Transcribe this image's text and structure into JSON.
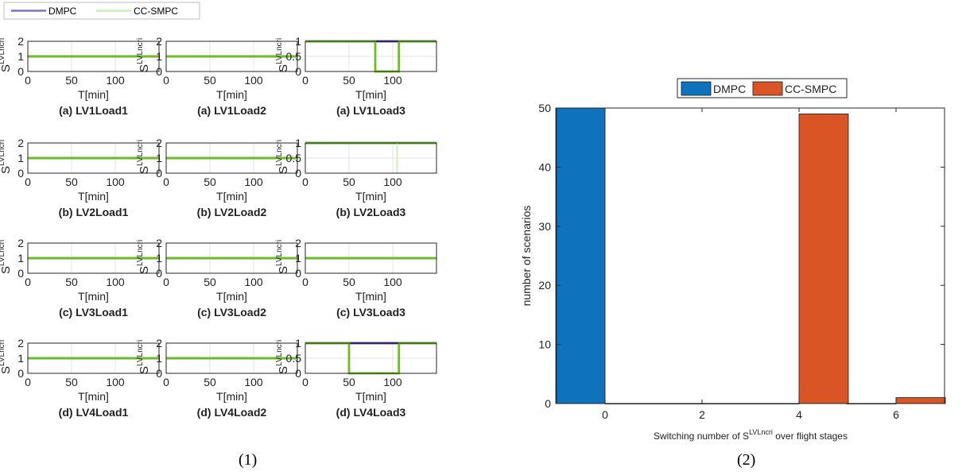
{
  "legend_left": [
    "DMPC",
    "CC-SMPC"
  ],
  "legend_right": [
    "DMPC",
    "CC-SMPC"
  ],
  "colors": {
    "dmpc_left": "#7b71c9",
    "ccsmpc_left": "#c8eeb0",
    "dmpc_dark": "#3a2a9c",
    "ccsmpc_line": "#6cbf1f",
    "dmpc_bar": "#0f72bd",
    "ccsmpc_bar": "#d95526"
  },
  "figure_captions": [
    "(1)",
    "(2)"
  ],
  "chart_data": [
    {
      "type": "line",
      "subplot_grid": "4x3",
      "xlabel": "T[min]",
      "ylabel_base": "S",
      "ylabel_sup": "LVLncri",
      "subplots": [
        {
          "title": "(a) LV1Load1",
          "xlim": [
            0,
            150
          ],
          "xticks": [
            "0",
            "50",
            "100"
          ],
          "ylim": [
            0,
            2
          ],
          "yticks": [
            "0",
            "1",
            "2"
          ],
          "series": [
            {
              "name": "DMPC",
              "x": [
                0,
                150
              ],
              "y": [
                1,
                1
              ]
            },
            {
              "name": "CC-SMPC",
              "x": [
                0,
                150
              ],
              "y": [
                1,
                1
              ]
            }
          ]
        },
        {
          "title": "(a) LV1Load2",
          "xlim": [
            0,
            150
          ],
          "xticks": [
            "0",
            "50",
            "100"
          ],
          "ylim": [
            0,
            2
          ],
          "yticks": [
            "0",
            "1",
            "2"
          ],
          "series": [
            {
              "name": "DMPC",
              "x": [
                0,
                150
              ],
              "y": [
                1,
                1
              ]
            },
            {
              "name": "CC-SMPC",
              "x": [
                0,
                150
              ],
              "y": [
                1,
                1
              ]
            }
          ]
        },
        {
          "title": "(a) LV1Load3",
          "xlim": [
            0,
            150
          ],
          "xticks": [
            "0",
            "50",
            "100"
          ],
          "ylim": [
            0,
            1
          ],
          "yticks": [
            "0",
            "0.5",
            "1"
          ],
          "series": [
            {
              "name": "DMPC",
              "x": [
                0,
                150
              ],
              "y": [
                1,
                1
              ]
            },
            {
              "name": "CC-SMPC",
              "x": [
                0,
                80,
                80,
                107,
                107,
                150
              ],
              "y": [
                1,
                1,
                0,
                0,
                1,
                1
              ]
            }
          ]
        },
        {
          "title": "(b) LV2Load1",
          "xlim": [
            0,
            150
          ],
          "xticks": [
            "0",
            "50",
            "100"
          ],
          "ylim": [
            0,
            2
          ],
          "yticks": [
            "0",
            "1",
            "2"
          ],
          "series": [
            {
              "name": "DMPC",
              "x": [
                0,
                150
              ],
              "y": [
                1,
                1
              ]
            },
            {
              "name": "CC-SMPC",
              "x": [
                0,
                150
              ],
              "y": [
                1,
                1
              ]
            }
          ]
        },
        {
          "title": "(b) LV2Load2",
          "xlim": [
            0,
            150
          ],
          "xticks": [
            "0",
            "50",
            "100"
          ],
          "ylim": [
            0,
            2
          ],
          "yticks": [
            "0",
            "1",
            "2"
          ],
          "series": [
            {
              "name": "DMPC",
              "x": [
                0,
                150
              ],
              "y": [
                1,
                1
              ]
            },
            {
              "name": "CC-SMPC",
              "x": [
                0,
                150
              ],
              "y": [
                1,
                1
              ]
            }
          ]
        },
        {
          "title": "(b) LV2Load3",
          "xlim": [
            0,
            150
          ],
          "xticks": [
            "0",
            "50",
            "100"
          ],
          "ylim": [
            0,
            1
          ],
          "yticks": [
            "0",
            "0.5",
            "1"
          ],
          "series": [
            {
              "name": "DMPC",
              "x": [
                0,
                150
              ],
              "y": [
                1,
                1
              ]
            },
            {
              "name": "CC-SMPC",
              "x": [
                0,
                150
              ],
              "y": [
                1,
                1
              ]
            }
          ]
        },
        {
          "title": "(c) LV3Load1",
          "xlim": [
            0,
            150
          ],
          "xticks": [
            "0",
            "50",
            "100"
          ],
          "ylim": [
            0,
            2
          ],
          "yticks": [
            "0",
            "1",
            "2"
          ],
          "series": [
            {
              "name": "DMPC",
              "x": [
                0,
                150
              ],
              "y": [
                1,
                1
              ]
            },
            {
              "name": "CC-SMPC",
              "x": [
                0,
                150
              ],
              "y": [
                1,
                1
              ]
            }
          ]
        },
        {
          "title": "(c) LV3Load2",
          "xlim": [
            0,
            150
          ],
          "xticks": [
            "0",
            "50",
            "100"
          ],
          "ylim": [
            0,
            2
          ],
          "yticks": [
            "0",
            "1",
            "2"
          ],
          "series": [
            {
              "name": "DMPC",
              "x": [
                0,
                150
              ],
              "y": [
                1,
                1
              ]
            },
            {
              "name": "CC-SMPC",
              "x": [
                0,
                150
              ],
              "y": [
                1,
                1
              ]
            }
          ]
        },
        {
          "title": "(c) LV3Load3",
          "xlim": [
            0,
            150
          ],
          "xticks": [
            "0",
            "50",
            "100"
          ],
          "ylim": [
            0,
            2
          ],
          "yticks": [
            "0",
            "1",
            "2"
          ],
          "series": [
            {
              "name": "DMPC",
              "x": [
                0,
                150
              ],
              "y": [
                1,
                1
              ]
            },
            {
              "name": "CC-SMPC",
              "x": [
                0,
                150
              ],
              "y": [
                1,
                1
              ]
            }
          ]
        },
        {
          "title": "(d) LV4Load1",
          "xlim": [
            0,
            150
          ],
          "xticks": [
            "0",
            "50",
            "100"
          ],
          "ylim": [
            0,
            2
          ],
          "yticks": [
            "0",
            "1",
            "2"
          ],
          "series": [
            {
              "name": "DMPC",
              "x": [
                0,
                150
              ],
              "y": [
                1,
                1
              ]
            },
            {
              "name": "CC-SMPC",
              "x": [
                0,
                150
              ],
              "y": [
                1,
                1
              ]
            }
          ]
        },
        {
          "title": "(d) LV4Load2",
          "xlim": [
            0,
            150
          ],
          "xticks": [
            "0",
            "50",
            "100"
          ],
          "ylim": [
            0,
            2
          ],
          "yticks": [
            "0",
            "1",
            "2"
          ],
          "series": [
            {
              "name": "DMPC",
              "x": [
                0,
                150
              ],
              "y": [
                1,
                1
              ]
            },
            {
              "name": "CC-SMPC",
              "x": [
                0,
                150
              ],
              "y": [
                1,
                1
              ]
            }
          ]
        },
        {
          "title": "(d) LV4Load3",
          "xlim": [
            0,
            150
          ],
          "xticks": [
            "0",
            "50",
            "100"
          ],
          "ylim": [
            0,
            1
          ],
          "yticks": [
            "0",
            "0.5",
            "1"
          ],
          "series": [
            {
              "name": "DMPC",
              "x": [
                0,
                150
              ],
              "y": [
                1,
                1
              ]
            },
            {
              "name": "CC-SMPC",
              "x": [
                0,
                50,
                50,
                107,
                107,
                150
              ],
              "y": [
                1,
                1,
                0,
                0,
                1,
                1
              ]
            }
          ]
        }
      ]
    },
    {
      "type": "bar",
      "xlabel_main": "Switching number of S",
      "xlabel_sup": "LVLncri",
      "xlabel_tail": " over flight stages",
      "ylabel": "number of scenarios",
      "xticks": [
        "0",
        "2",
        "4",
        "6"
      ],
      "yticks": [
        "0",
        "10",
        "20",
        "30",
        "40",
        "50"
      ],
      "xlim": [
        -1,
        7
      ],
      "ylim": [
        0,
        50
      ],
      "categories": [
        0,
        2,
        4,
        6
      ],
      "series": [
        {
          "name": "DMPC",
          "values": [
            50,
            0,
            0,
            0
          ]
        },
        {
          "name": "CC-SMPC",
          "values": [
            0,
            0,
            49,
            1
          ]
        }
      ],
      "legend_position": "top"
    }
  ]
}
